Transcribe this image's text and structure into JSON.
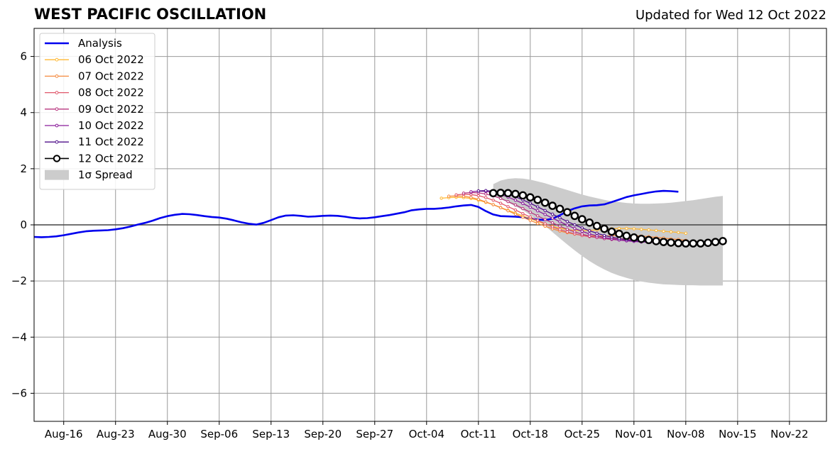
{
  "header": {
    "title": "WEST PACIFIC OSCILLATION",
    "subtitle": "Updated for Wed 12 Oct 2022"
  },
  "chart_data": {
    "type": "line",
    "title": "WEST PACIFIC OSCILLATION",
    "subtitle": "Updated for Wed 12 Oct 2022",
    "xlabel": "",
    "ylabel": "",
    "x_range": [
      "2022-08-12",
      "2022-11-27"
    ],
    "ylim": [
      -7,
      7
    ],
    "x_ticks": [
      {
        "date": "2022-08-16",
        "label": "Aug-16"
      },
      {
        "date": "2022-08-23",
        "label": "Aug-23"
      },
      {
        "date": "2022-08-30",
        "label": "Aug-30"
      },
      {
        "date": "2022-09-06",
        "label": "Sep-06"
      },
      {
        "date": "2022-09-13",
        "label": "Sep-13"
      },
      {
        "date": "2022-09-20",
        "label": "Sep-20"
      },
      {
        "date": "2022-09-27",
        "label": "Sep-27"
      },
      {
        "date": "2022-10-04",
        "label": "Oct-04"
      },
      {
        "date": "2022-10-11",
        "label": "Oct-11"
      },
      {
        "date": "2022-10-18",
        "label": "Oct-18"
      },
      {
        "date": "2022-10-25",
        "label": "Oct-25"
      },
      {
        "date": "2022-11-01",
        "label": "Nov-01"
      },
      {
        "date": "2022-11-08",
        "label": "Nov-08"
      },
      {
        "date": "2022-11-15",
        "label": "Nov-15"
      },
      {
        "date": "2022-11-22",
        "label": "Nov-22"
      }
    ],
    "y_ticks": [
      {
        "value": 6,
        "label": "6"
      },
      {
        "value": 4,
        "label": "4"
      },
      {
        "value": 2,
        "label": "2"
      },
      {
        "value": 0,
        "label": "0"
      },
      {
        "value": -2,
        "label": "−2"
      },
      {
        "value": -4,
        "label": "−4"
      },
      {
        "value": -6,
        "label": "−6"
      }
    ],
    "grid": true,
    "zero_line": true,
    "legend_position": "top-left",
    "legend": [
      {
        "label": "Analysis",
        "color": "#0000ee",
        "kind": "line"
      },
      {
        "label": "06 Oct 2022",
        "color": "#ffb833",
        "kind": "marker-line"
      },
      {
        "label": "07 Oct 2022",
        "color": "#f58a3e",
        "kind": "marker-line"
      },
      {
        "label": "08 Oct 2022",
        "color": "#e0566a",
        "kind": "marker-line"
      },
      {
        "label": "09 Oct 2022",
        "color": "#b8367f",
        "kind": "marker-line"
      },
      {
        "label": "10 Oct 2022",
        "color": "#8a1c9a",
        "kind": "marker-line"
      },
      {
        "label": "11 Oct 2022",
        "color": "#4f0f8a",
        "kind": "marker-line"
      },
      {
        "label": "12 Oct 2022",
        "color": "#000000",
        "kind": "circle-line"
      },
      {
        "label": "1σ Spread",
        "color": "#cccccc",
        "kind": "patch"
      }
    ],
    "analysis": {
      "name": "Analysis",
      "color": "#0000ee",
      "start": "2022-08-12",
      "values": [
        -0.43,
        -0.44,
        -0.43,
        -0.41,
        -0.37,
        -0.32,
        -0.27,
        -0.23,
        -0.21,
        -0.2,
        -0.19,
        -0.16,
        -0.12,
        -0.06,
        0.01,
        0.07,
        0.15,
        0.24,
        0.31,
        0.36,
        0.39,
        0.38,
        0.35,
        0.31,
        0.28,
        0.26,
        0.22,
        0.16,
        0.09,
        0.04,
        0.01,
        0.07,
        0.17,
        0.27,
        0.33,
        0.34,
        0.32,
        0.29,
        0.3,
        0.32,
        0.33,
        0.32,
        0.29,
        0.25,
        0.23,
        0.24,
        0.27,
        0.31,
        0.35,
        0.4,
        0.45,
        0.52,
        0.55,
        0.57,
        0.57,
        0.59,
        0.62,
        0.66,
        0.69,
        0.71,
        0.64,
        0.49,
        0.37,
        0.31,
        0.3,
        0.29,
        0.27,
        0.23,
        0.19,
        0.17,
        0.22,
        0.34,
        0.49,
        0.59,
        0.66,
        0.69,
        0.7,
        0.73,
        0.81,
        0.9,
        0.99,
        1.05,
        1.1,
        1.15,
        1.19,
        1.21,
        1.2,
        1.18
      ]
    },
    "forecasts": [
      {
        "name": "06 Oct 2022",
        "color": "#ffb833",
        "start": "2022-10-06",
        "values": [
          0.95,
          0.97,
          0.98,
          0.97,
          0.94,
          0.88,
          0.8,
          0.72,
          0.62,
          0.52,
          0.42,
          0.32,
          0.22,
          0.12,
          0.03,
          -0.05,
          -0.12,
          -0.17,
          -0.2,
          -0.21,
          -0.2,
          -0.18,
          -0.16,
          -0.14,
          -0.13,
          -0.13,
          -0.14,
          -0.16,
          -0.18,
          -0.2,
          -0.23,
          -0.25,
          -0.27,
          -0.3
        ]
      },
      {
        "name": "07 Oct 2022",
        "color": "#f58a3e",
        "start": "2022-10-07",
        "values": [
          1.02,
          1.03,
          1.02,
          0.98,
          0.91,
          0.82,
          0.72,
          0.61,
          0.5,
          0.38,
          0.27,
          0.16,
          0.05,
          -0.05,
          -0.14,
          -0.22,
          -0.28,
          -0.33,
          -0.37,
          -0.39,
          -0.4,
          -0.4,
          -0.39,
          -0.38,
          -0.38,
          -0.39,
          -0.4,
          -0.42,
          -0.45,
          -0.47,
          -0.5,
          -0.52,
          -0.55
        ]
      },
      {
        "name": "08 Oct 2022",
        "color": "#e0566a",
        "start": "2022-10-08",
        "values": [
          1.07,
          1.09,
          1.08,
          1.04,
          0.97,
          0.88,
          0.77,
          0.65,
          0.53,
          0.4,
          0.28,
          0.16,
          0.04,
          -0.07,
          -0.17,
          -0.25,
          -0.32,
          -0.38,
          -0.42,
          -0.45,
          -0.47,
          -0.48,
          -0.49,
          -0.5,
          -0.51,
          -0.52,
          -0.54,
          -0.56,
          -0.58,
          -0.6,
          -0.62,
          -0.64
        ]
      },
      {
        "name": "09 Oct 2022",
        "color": "#b8367f",
        "start": "2022-10-09",
        "values": [
          1.13,
          1.15,
          1.14,
          1.1,
          1.03,
          0.94,
          0.83,
          0.71,
          0.58,
          0.45,
          0.32,
          0.19,
          0.07,
          -0.05,
          -0.16,
          -0.25,
          -0.33,
          -0.4,
          -0.45,
          -0.49,
          -0.52,
          -0.54,
          -0.55,
          -0.56,
          -0.57,
          -0.58,
          -0.59,
          -0.6,
          -0.62,
          -0.63,
          -0.64
        ]
      },
      {
        "name": "10 Oct 2022",
        "color": "#8a1c9a",
        "start": "2022-10-10",
        "values": [
          1.18,
          1.2,
          1.19,
          1.15,
          1.08,
          0.99,
          0.88,
          0.76,
          0.63,
          0.5,
          0.37,
          0.24,
          0.11,
          -0.01,
          -0.13,
          -0.23,
          -0.32,
          -0.39,
          -0.45,
          -0.5,
          -0.54,
          -0.57,
          -0.59,
          -0.61,
          -0.62,
          -0.63,
          -0.64,
          -0.65,
          -0.66,
          -0.67
        ]
      },
      {
        "name": "11 Oct 2022",
        "color": "#4f0f8a",
        "start": "2022-10-11",
        "values": [
          1.21,
          1.22,
          1.2,
          1.16,
          1.09,
          1.0,
          0.89,
          0.77,
          0.64,
          0.51,
          0.38,
          0.25,
          0.12,
          0.0,
          -0.11,
          -0.21,
          -0.3,
          -0.38,
          -0.44,
          -0.49,
          -0.53,
          -0.56,
          -0.58,
          -0.6,
          -0.61,
          -0.62,
          -0.63,
          -0.63,
          -0.63
        ]
      },
      {
        "name": "12 Oct 2022",
        "color": "#000000",
        "start": "2022-10-13",
        "values": [
          1.13,
          1.14,
          1.13,
          1.1,
          1.05,
          0.98,
          0.89,
          0.79,
          0.68,
          0.57,
          0.45,
          0.32,
          0.2,
          0.08,
          -0.04,
          -0.14,
          -0.24,
          -0.32,
          -0.39,
          -0.45,
          -0.5,
          -0.54,
          -0.58,
          -0.61,
          -0.63,
          -0.65,
          -0.66,
          -0.66,
          -0.66,
          -0.64,
          -0.61,
          -0.58
        ]
      }
    ],
    "spread": {
      "name": "1σ Spread",
      "color": "#cccccc",
      "start": "2022-10-13",
      "upper": [
        1.45,
        1.58,
        1.64,
        1.66,
        1.65,
        1.61,
        1.55,
        1.48,
        1.4,
        1.32,
        1.24,
        1.16,
        1.08,
        1.01,
        0.95,
        0.89,
        0.84,
        0.81,
        0.78,
        0.76,
        0.75,
        0.75,
        0.76,
        0.77,
        0.79,
        0.82,
        0.85,
        0.88,
        0.92,
        0.96,
        1.0,
        1.03
      ],
      "lower": [
        1.05,
        0.92,
        0.8,
        0.66,
        0.52,
        0.35,
        0.16,
        -0.04,
        -0.26,
        -0.48,
        -0.7,
        -0.91,
        -1.11,
        -1.29,
        -1.45,
        -1.59,
        -1.71,
        -1.81,
        -1.89,
        -1.96,
        -2.02,
        -2.06,
        -2.09,
        -2.12,
        -2.13,
        -2.14,
        -2.15,
        -2.15,
        -2.16,
        -2.16,
        -2.16,
        -2.16
      ]
    }
  }
}
